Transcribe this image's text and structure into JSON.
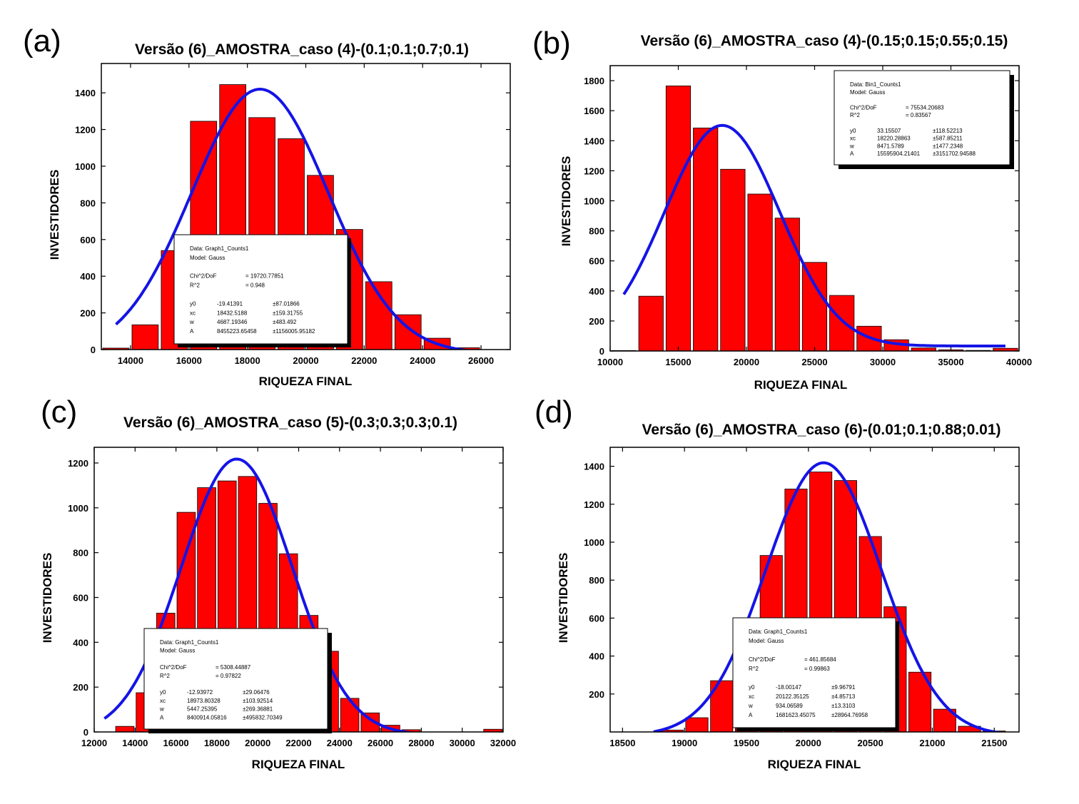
{
  "colors": {
    "bar_fill": "#ff0000",
    "bar_edge": "#000000",
    "fit_line": "#1414e6",
    "frame": "#000000",
    "shadow": "#000000"
  },
  "panels": [
    {
      "letter": "(a)",
      "title": "Versão (6)_AMOSTRA_caso (4)-(0.1;0.1;0.7;0.1)",
      "xlabel": "RIQUEZA FINAL",
      "ylabel": "INVESTIDORES",
      "xticks": [
        "14000",
        "16000",
        "18000",
        "20000",
        "22000",
        "24000",
        "26000"
      ],
      "yticks": [
        "0",
        "200",
        "400",
        "600",
        "800",
        "1000",
        "1200",
        "1400"
      ],
      "show_zero": true,
      "fitbox": {
        "lines": [
          [
            "Data: Graph1_Counts1"
          ],
          [
            "Model: Gauss"
          ],
          [
            ""
          ],
          [
            "Chi^2/DoF",
            "= 19720.77851"
          ],
          [
            "R^2",
            "= 0.948"
          ],
          [
            ""
          ],
          [
            "y0",
            "-19.41391",
            "±87.01866"
          ],
          [
            "xc",
            "18432.5188",
            "±159.31755"
          ],
          [
            "w",
            "4687.19346",
            "±483.492"
          ],
          [
            "A",
            "8455223.65458",
            "±1156005.95182"
          ]
        ]
      }
    },
    {
      "letter": "(b)",
      "title": "Versão (6)_AMOSTRA_caso (4)-(0.15;0.15;0.55;0.15)",
      "xlabel": "RIQUEZA FINAL",
      "ylabel": "INVESTIDORES",
      "xticks": [
        "10000",
        "15000",
        "20000",
        "25000",
        "30000",
        "35000",
        "40000"
      ],
      "yticks": [
        "0",
        "200",
        "400",
        "600",
        "800",
        "1000",
        "1200",
        "1400",
        "1600",
        "1800"
      ],
      "show_zero": true,
      "fitbox": {
        "lines": [
          [
            "Data: Bin1_Counts1"
          ],
          [
            "Model: Gauss"
          ],
          [
            ""
          ],
          [
            "Chi^2/DoF",
            "= 75534.20683"
          ],
          [
            "R^2",
            "= 0.83567"
          ],
          [
            ""
          ],
          [
            "y0",
            "33.15507",
            "±118.52213"
          ],
          [
            "xc",
            "18220.28863",
            "±587.85211"
          ],
          [
            "w",
            "8471.5789",
            "±1477.2348"
          ],
          [
            "A",
            "15595904.21401",
            "±3151702.94588"
          ]
        ]
      }
    },
    {
      "letter": "(c)",
      "title": "Versão (6)_AMOSTRA_caso (5)-(0.3;0.3;0.3;0.1)",
      "xlabel": "RIQUEZA FINAL",
      "ylabel": "INVESTIDORES",
      "xticks": [
        "12000",
        "14000",
        "16000",
        "18000",
        "20000",
        "22000",
        "24000",
        "26000",
        "28000",
        "30000",
        "32000"
      ],
      "yticks": [
        "0",
        "200",
        "400",
        "600",
        "800",
        "1000",
        "1200"
      ],
      "show_zero": true,
      "fitbox": {
        "lines": [
          [
            "Data: Graph1_Counts1"
          ],
          [
            "Model: Gauss"
          ],
          [
            ""
          ],
          [
            "Chi^2/DoF",
            "= 5308.44887"
          ],
          [
            "R^2",
            "= 0.97822"
          ],
          [
            ""
          ],
          [
            "y0",
            "-12.93972",
            "±29.06476"
          ],
          [
            "xc",
            "18973.80328",
            "±103.92514"
          ],
          [
            "w",
            "5447.25395",
            "±269.36881"
          ],
          [
            "A",
            "8400914.05816",
            "±495832.70349"
          ]
        ]
      }
    },
    {
      "letter": "(d)",
      "title": "Versão (6)_AMOSTRA_caso (6)-(0.01;0.1;0.88;0.01)",
      "xlabel": "RIQUEZA FINAL",
      "ylabel": "INVESTIDORES",
      "xticks": [
        "18500",
        "19000",
        "19500",
        "20000",
        "20500",
        "21000",
        "21500"
      ],
      "yticks": [
        "200",
        "400",
        "600",
        "800",
        "1000",
        "1200",
        "1400"
      ],
      "show_zero": false,
      "fitbox": {
        "lines": [
          [
            "Data: Graph1_Counts1"
          ],
          [
            "Model: Gauss"
          ],
          [
            ""
          ],
          [
            "Chi^2/DoF",
            "= 461.85684"
          ],
          [
            "R^2",
            "= 0.99863"
          ],
          [
            ""
          ],
          [
            "y0",
            "-18.00147",
            "±9.96791"
          ],
          [
            "xc",
            "20122.35125",
            "±4.85713"
          ],
          [
            "w",
            "934.06589",
            "±13.3103"
          ],
          [
            "A",
            "1681623.45075",
            "±28964.76958"
          ]
        ]
      }
    }
  ],
  "chart_data": [
    {
      "type": "bar",
      "title": "Versão (6)_AMOSTRA_caso (4)-(0.1;0.1;0.7;0.1)",
      "xlabel": "RIQUEZA FINAL",
      "ylabel": "INVESTIDORES",
      "xlim": [
        13000,
        27000
      ],
      "ylim": [
        0,
        1560
      ],
      "bin_width": 1000,
      "bars": [
        {
          "x": 13500,
          "y": 8
        },
        {
          "x": 14500,
          "y": 135
        },
        {
          "x": 15500,
          "y": 540
        },
        {
          "x": 16500,
          "y": 1245
        },
        {
          "x": 17500,
          "y": 1445
        },
        {
          "x": 18500,
          "y": 1265
        },
        {
          "x": 19500,
          "y": 1150
        },
        {
          "x": 20500,
          "y": 950
        },
        {
          "x": 21500,
          "y": 655
        },
        {
          "x": 22500,
          "y": 370
        },
        {
          "x": 23500,
          "y": 190
        },
        {
          "x": 24500,
          "y": 62
        },
        {
          "x": 25500,
          "y": 10
        }
      ],
      "fit": {
        "model": "Gauss",
        "y0": -19.41391,
        "xc": 18432.5188,
        "w": 4687.19346,
        "A": 8455223.65458,
        "x_range": [
          13500,
          25500
        ]
      }
    },
    {
      "type": "bar",
      "title": "Versão (6)_AMOSTRA_caso (4)-(0.15;0.15;0.55;0.15)",
      "xlabel": "RIQUEZA FINAL",
      "ylabel": "INVESTIDORES",
      "xlim": [
        10000,
        40000
      ],
      "ylim": [
        0,
        1900
      ],
      "bin_width": 2000,
      "bars": [
        {
          "x": 11000,
          "y": 3
        },
        {
          "x": 13000,
          "y": 365
        },
        {
          "x": 15000,
          "y": 1765
        },
        {
          "x": 17000,
          "y": 1485
        },
        {
          "x": 19000,
          "y": 1210
        },
        {
          "x": 21000,
          "y": 1045
        },
        {
          "x": 23000,
          "y": 885
        },
        {
          "x": 25000,
          "y": 590
        },
        {
          "x": 27000,
          "y": 370
        },
        {
          "x": 29000,
          "y": 165
        },
        {
          "x": 31000,
          "y": 75
        },
        {
          "x": 33000,
          "y": 20
        },
        {
          "x": 35000,
          "y": 8
        },
        {
          "x": 37000,
          "y": 4
        },
        {
          "x": 39000,
          "y": 18
        }
      ],
      "fit": {
        "model": "Gauss",
        "y0": 33.15507,
        "xc": 18220.28863,
        "w": 8471.5789,
        "A": 15595904.21401,
        "x_range": [
          11000,
          39000
        ]
      }
    },
    {
      "type": "bar",
      "title": "Versão (6)_AMOSTRA_caso (5)-(0.3;0.3;0.3;0.1)",
      "xlabel": "RIQUEZA FINAL",
      "ylabel": "INVESTIDORES",
      "xlim": [
        12000,
        32000
      ],
      "ylim": [
        0,
        1270
      ],
      "bin_width": 1000,
      "bars": [
        {
          "x": 13500,
          "y": 25
        },
        {
          "x": 14500,
          "y": 175
        },
        {
          "x": 15500,
          "y": 530
        },
        {
          "x": 16500,
          "y": 980
        },
        {
          "x": 17500,
          "y": 1090
        },
        {
          "x": 18500,
          "y": 1120
        },
        {
          "x": 19500,
          "y": 1140
        },
        {
          "x": 20500,
          "y": 1020
        },
        {
          "x": 21500,
          "y": 795
        },
        {
          "x": 22500,
          "y": 520
        },
        {
          "x": 23500,
          "y": 360
        },
        {
          "x": 24500,
          "y": 150
        },
        {
          "x": 25500,
          "y": 85
        },
        {
          "x": 26500,
          "y": 30
        },
        {
          "x": 27500,
          "y": 10
        },
        {
          "x": 31500,
          "y": 12
        }
      ],
      "fit": {
        "model": "Gauss",
        "y0": -12.93972,
        "xc": 18973.80328,
        "w": 5447.25395,
        "A": 8400914.05816,
        "x_range": [
          12500,
          31500
        ]
      }
    },
    {
      "type": "bar",
      "title": "Versão (6)_AMOSTRA_caso (6)-(0.01;0.1;0.88;0.01)",
      "xlabel": "RIQUEZA FINAL",
      "ylabel": "INVESTIDORES",
      "xlim": [
        18400,
        21700
      ],
      "ylim": [
        0,
        1500
      ],
      "bin_width": 200,
      "bars": [
        {
          "x": 18900,
          "y": 10
        },
        {
          "x": 19100,
          "y": 75
        },
        {
          "x": 19300,
          "y": 270
        },
        {
          "x": 19500,
          "y": 440
        },
        {
          "x": 19700,
          "y": 930
        },
        {
          "x": 19900,
          "y": 1280
        },
        {
          "x": 20100,
          "y": 1370
        },
        {
          "x": 20300,
          "y": 1325
        },
        {
          "x": 20500,
          "y": 1030
        },
        {
          "x": 20700,
          "y": 660
        },
        {
          "x": 20900,
          "y": 315
        },
        {
          "x": 21100,
          "y": 120
        },
        {
          "x": 21300,
          "y": 30
        },
        {
          "x": 21500,
          "y": 5
        }
      ],
      "fit": {
        "model": "Gauss",
        "y0": -18.00147,
        "xc": 20122.35125,
        "w": 934.06589,
        "A": 1681623.45075,
        "x_range": [
          18750,
          21550
        ]
      }
    }
  ]
}
